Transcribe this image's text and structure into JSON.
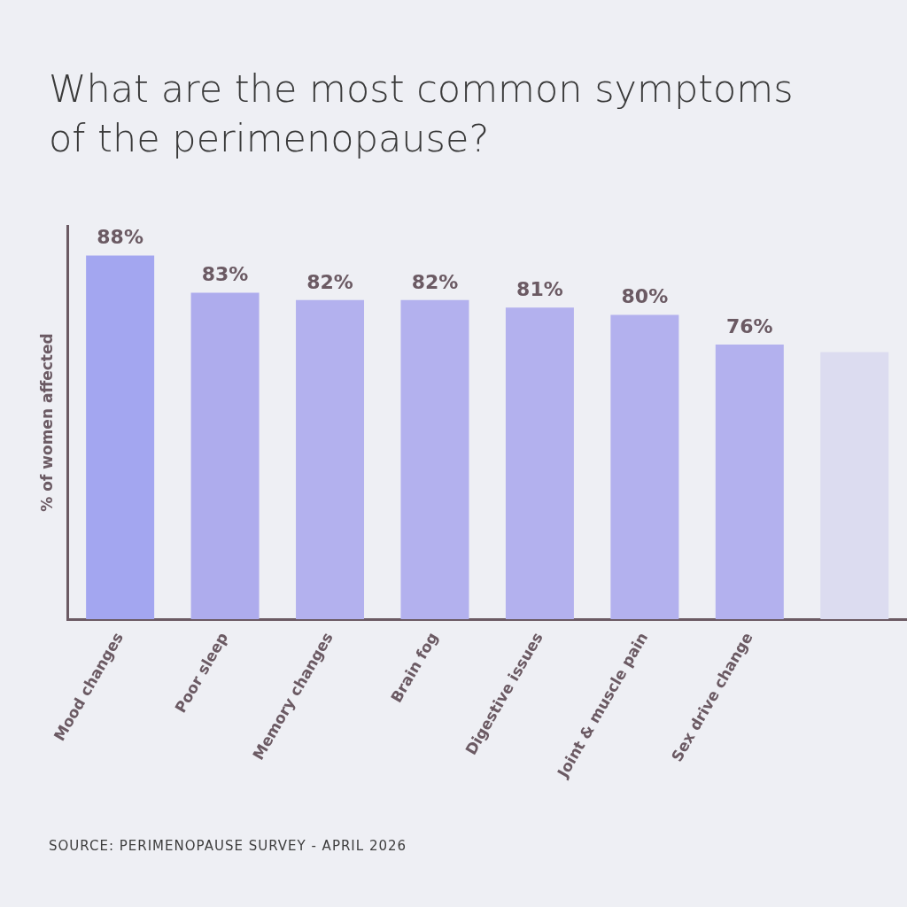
{
  "chart_data": {
    "type": "bar",
    "title": "What are the most common symptoms of the perimenopause?",
    "ylabel": "% of women affected",
    "categories": [
      "Mood changes",
      "Poor sleep",
      "Memory changes",
      "Brain fog",
      "Digestive issues",
      "Joint & muscle pain",
      "Sex drive change",
      null
    ],
    "values": [
      88,
      83,
      82,
      82,
      81,
      80,
      76,
      75
    ],
    "value_labels": [
      "88%",
      "83%",
      "82%",
      "82%",
      "81%",
      "80%",
      "76%",
      null
    ],
    "colors": [
      "#a3a6f0",
      "#aeaced",
      "#b3b1ee",
      "#b3b1ee",
      "#b3b1ee",
      "#b3b1ee",
      "#b3b1ee",
      "#dcdcf0"
    ],
    "ylim": [
      39,
      92
    ],
    "tick_labels": "x",
    "grid": false,
    "legend": false,
    "annotations": [
      "SOURCE: PERIMENOPAUSE SURVEY - APRIL 2026"
    ]
  }
}
